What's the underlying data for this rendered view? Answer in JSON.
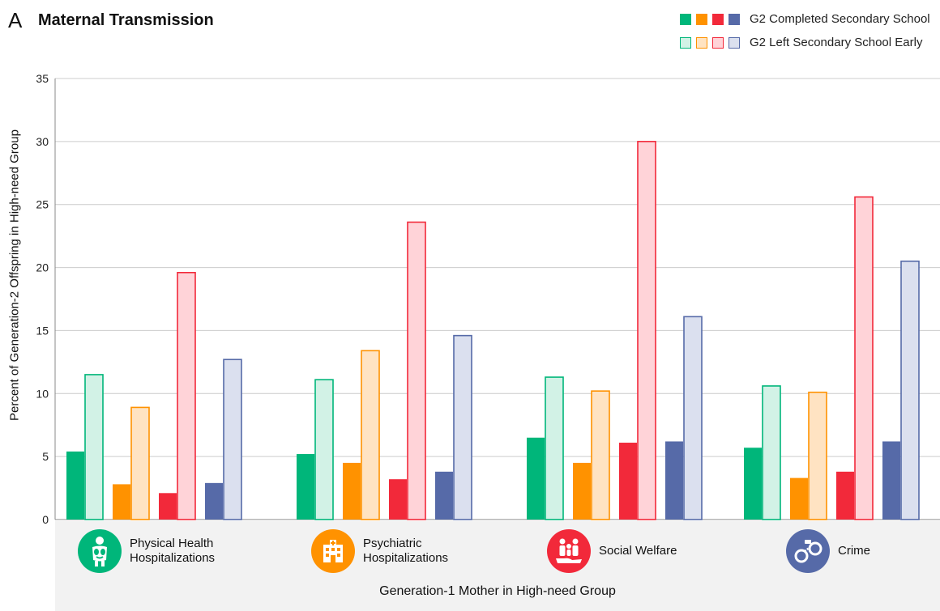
{
  "panel_letter": "A",
  "x_axis_label": "Generation-1 Mother in High-need Group",
  "legend": [
    {
      "label": "G2 Completed Secondary School",
      "style": "solid"
    },
    {
      "label": "G2 Left Secondary School Early",
      "style": "light"
    }
  ],
  "colors": {
    "green": "#00b67a",
    "green_light": "#d2f2e6",
    "orange": "#ff9200",
    "orange_light": "#ffe3c2",
    "red": "#f2293a",
    "red_light": "#ffd3d8",
    "blue": "#566aa8",
    "blue_light": "#dbe0ef",
    "grid": "#cccccc",
    "band": "#f2f2f2"
  },
  "category_icons": [
    {
      "category": "Physical Health Hospitalizations",
      "icon": "body-organs-icon",
      "color": "#00b67a"
    },
    {
      "category": "Psychiatric Hospitalizations",
      "icon": "hospital-building-icon",
      "color": "#ff9200"
    },
    {
      "category": "Social Welfare",
      "icon": "family-hand-icon",
      "color": "#f2293a"
    },
    {
      "category": "Crime",
      "icon": "handcuffs-icon",
      "color": "#566aa8"
    }
  ],
  "category_display": [
    "Physical Health\nHospitalizations",
    "Psychiatric\nHospitalizations",
    "Social Welfare",
    "Crime"
  ],
  "chart_data": {
    "type": "bar",
    "title": "Maternal Transmission",
    "ylabel": "Percent of Generation-2 Offspring in High-need Group",
    "xlabel": "Generation-1 Mother in High-need Group",
    "ylim": [
      0,
      35
    ],
    "yticks": [
      0,
      5,
      10,
      15,
      20,
      25,
      30,
      35
    ],
    "grid": true,
    "legend_position": "top-right",
    "categories": [
      "Physical Health Hospitalizations",
      "Psychiatric Hospitalizations",
      "Social Welfare",
      "Crime"
    ],
    "series": [
      {
        "name": "Physical Health Hospitalizations",
        "completed": [
          5.4,
          5.2,
          6.5,
          5.7
        ],
        "left_early": [
          11.5,
          11.1,
          11.3,
          10.6
        ],
        "color": "#00b67a",
        "light_color": "#d2f2e6"
      },
      {
        "name": "Psychiatric Hospitalizations",
        "completed": [
          2.8,
          4.5,
          4.5,
          3.3
        ],
        "left_early": [
          8.9,
          13.4,
          10.2,
          10.1
        ],
        "color": "#ff9200",
        "light_color": "#ffe3c2"
      },
      {
        "name": "Social Welfare",
        "completed": [
          2.1,
          3.2,
          6.1,
          3.8
        ],
        "left_early": [
          19.6,
          23.6,
          30.0,
          25.6
        ],
        "color": "#f2293a",
        "light_color": "#ffd3d8"
      },
      {
        "name": "Crime",
        "completed": [
          2.9,
          3.8,
          6.2,
          6.2
        ],
        "left_early": [
          12.7,
          14.6,
          16.1,
          20.5
        ],
        "color": "#566aa8",
        "light_color": "#dbe0ef"
      }
    ]
  }
}
